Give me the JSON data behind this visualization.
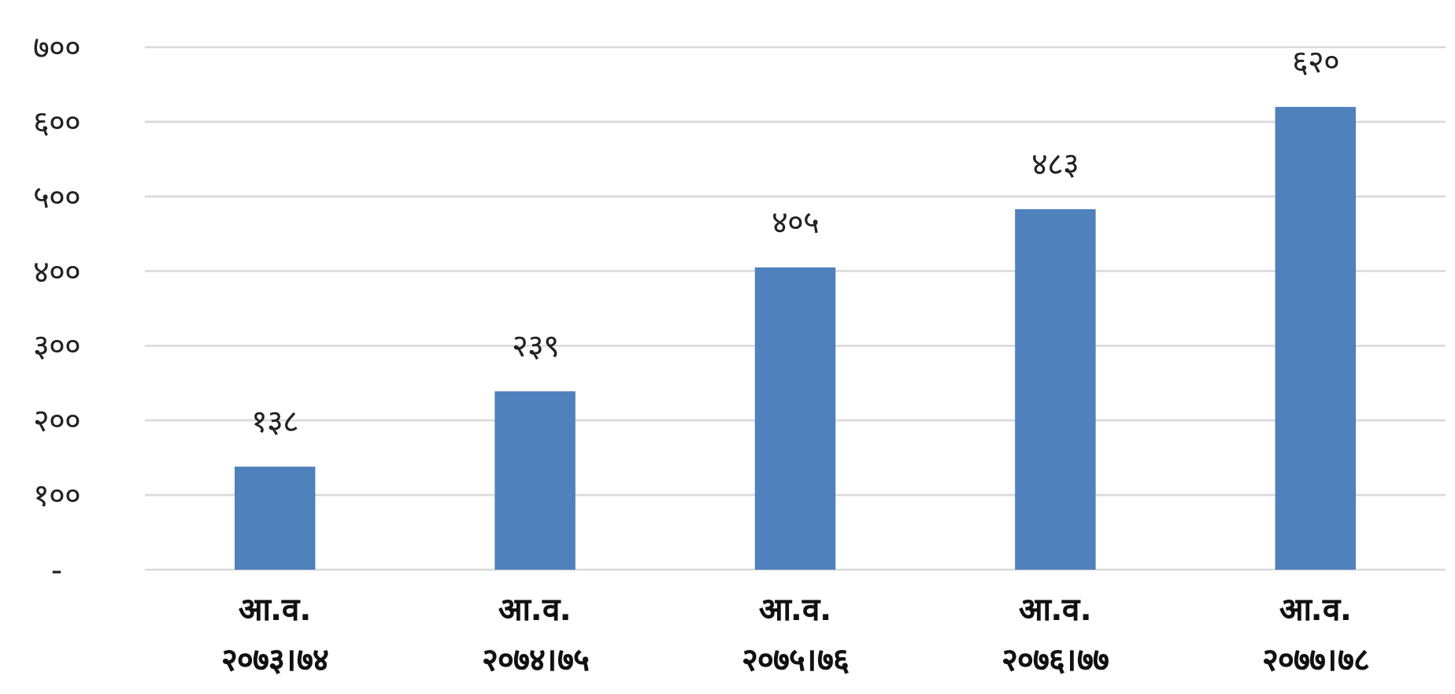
{
  "chart_data": {
    "type": "bar",
    "categories": [
      "आ.व.\n२०७३।७४",
      "आ.व.\n२०७४।७५",
      "आ.व.\n२०७५।७६",
      "आ.व.\n२०७६।७७",
      "आ.व.\n२०७७।७८"
    ],
    "values": [
      138,
      239,
      405,
      483,
      620
    ],
    "value_labels": [
      "१३८",
      "२३९",
      "४०५",
      "४८३",
      "६२०"
    ],
    "color": "#4f81bd",
    "ylim": [
      0,
      700
    ],
    "yticks": [
      {
        "value": 0,
        "label": "-"
      },
      {
        "value": 100,
        "label": "१००"
      },
      {
        "value": 200,
        "label": "२००"
      },
      {
        "value": 300,
        "label": "३००"
      },
      {
        "value": 400,
        "label": "४००"
      },
      {
        "value": 500,
        "label": "५००"
      },
      {
        "value": 600,
        "label": "६००"
      },
      {
        "value": 700,
        "label": "७००"
      }
    ],
    "grid": "y"
  }
}
